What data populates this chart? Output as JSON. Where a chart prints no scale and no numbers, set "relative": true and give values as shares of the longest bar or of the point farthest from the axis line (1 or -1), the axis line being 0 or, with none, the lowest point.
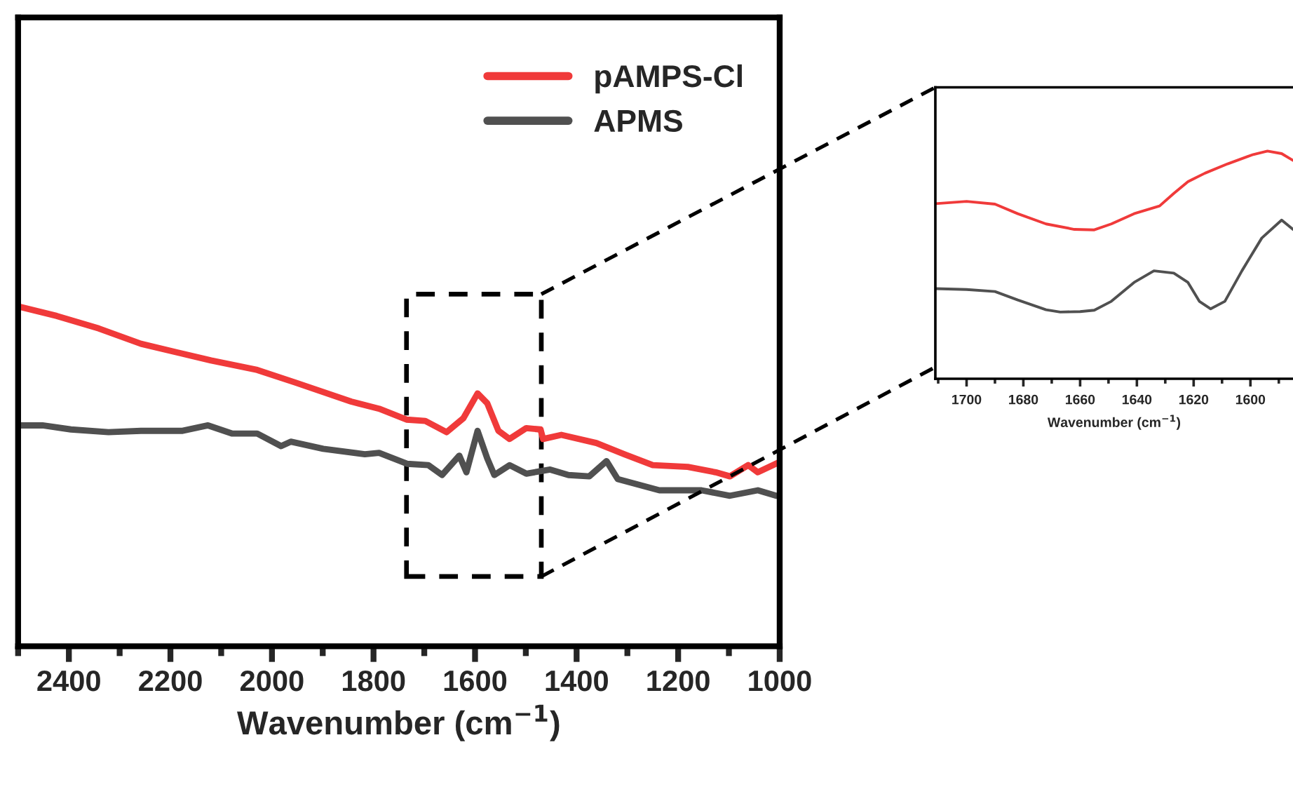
{
  "chart_data": [
    {
      "type": "line",
      "relative": true,
      "xlabel": "Wavenumber (cm$^{−1}$)",
      "xlim": [
        2500,
        1000
      ],
      "xticks": [
        {
          "value": 2500,
          "label": null
        },
        2400,
        {
          "value": 2300,
          "label": null
        },
        2200,
        {
          "value": 2100,
          "label": null
        },
        2000,
        {
          "value": 1900,
          "label": null
        },
        1800,
        {
          "value": 1700,
          "label": null
        },
        1600,
        {
          "value": 1500,
          "label": null
        },
        1400,
        {
          "value": 1300,
          "label": null
        },
        1200,
        {
          "value": 1100,
          "label": null
        },
        1000
      ],
      "tick_labels": "x",
      "legend": "top right",
      "grid": false,
      "series": [
        {
          "name": "pAMPS-Cl",
          "color": "#f03a3a",
          "x": [
            2500,
            2424,
            2341,
            2258,
            2120,
            2029,
            1954,
            1844,
            1789,
            1735,
            1698,
            1656,
            1623,
            1595,
            1576,
            1554,
            1532,
            1499,
            1471,
            1466,
            1430,
            1361,
            1306,
            1250,
            1181,
            1126,
            1098,
            1062,
            1043,
            1002
          ],
          "values": [
            1.0,
            0.972,
            0.935,
            0.89,
            0.841,
            0.813,
            0.776,
            0.72,
            0.699,
            0.667,
            0.663,
            0.63,
            0.671,
            0.744,
            0.715,
            0.634,
            0.61,
            0.642,
            0.638,
            0.61,
            0.622,
            0.598,
            0.565,
            0.533,
            0.528,
            0.512,
            0.5,
            0.533,
            0.512,
            0.541
          ]
        },
        {
          "name": "APMS",
          "color": "#505050",
          "x": [
            2500,
            2452,
            2396,
            2322,
            2258,
            2176,
            2126,
            2079,
            2029,
            1982,
            1963,
            1899,
            1817,
            1789,
            1734,
            1692,
            1665,
            1631,
            1617,
            1595,
            1576,
            1562,
            1532,
            1499,
            1452,
            1416,
            1375,
            1341,
            1319,
            1237,
            1154,
            1098,
            1043,
            1007
          ],
          "values": [
            0.65,
            0.65,
            0.638,
            0.63,
            0.634,
            0.634,
            0.65,
            0.626,
            0.626,
            0.589,
            0.602,
            0.581,
            0.565,
            0.569,
            0.537,
            0.533,
            0.504,
            0.561,
            0.512,
            0.634,
            0.553,
            0.504,
            0.533,
            0.508,
            0.52,
            0.504,
            0.5,
            0.545,
            0.492,
            0.459,
            0.459,
            0.443,
            0.459,
            0.443
          ]
        }
      ]
    },
    {
      "type": "line",
      "relative": true,
      "xlabel": "Wavenumber (cm$^{−1}$)",
      "xlim": [
        1711,
        1585
      ],
      "xticks": [
        {
          "value": 1710,
          "label": null
        },
        1700,
        {
          "value": 1690,
          "label": null
        },
        1680,
        {
          "value": 1670,
          "label": null
        },
        1660,
        {
          "value": 1650,
          "label": null
        },
        1640,
        {
          "value": 1630,
          "label": null
        },
        1620,
        {
          "value": 1610,
          "label": null
        },
        1600,
        {
          "value": 1590,
          "label": null
        }
      ],
      "tick_labels": "x",
      "grid": false,
      "series": [
        {
          "color": "#f03a3a",
          "x": [
            1711,
            1700,
            1690,
            1682,
            1672,
            1662,
            1655,
            1649,
            1641,
            1632,
            1627,
            1622,
            1616,
            1608,
            1599,
            1594,
            1589,
            1585
          ],
          "values": [
            0.769,
            0.779,
            0.767,
            0.725,
            0.68,
            0.656,
            0.654,
            0.68,
            0.725,
            0.759,
            0.814,
            0.866,
            0.903,
            0.944,
            0.985,
            1.0,
            0.989,
            0.959
          ]
        },
        {
          "color": "#505050",
          "x": [
            1711,
            1700,
            1690,
            1682,
            1672,
            1667,
            1660,
            1655,
            1649,
            1641,
            1634,
            1627,
            1622,
            1618,
            1614,
            1609,
            1603,
            1596,
            1589,
            1585
          ],
          "values": [
            0.396,
            0.392,
            0.383,
            0.346,
            0.303,
            0.293,
            0.295,
            0.301,
            0.34,
            0.423,
            0.474,
            0.464,
            0.423,
            0.34,
            0.307,
            0.34,
            0.474,
            0.618,
            0.697,
            0.656
          ]
        }
      ]
    }
  ]
}
